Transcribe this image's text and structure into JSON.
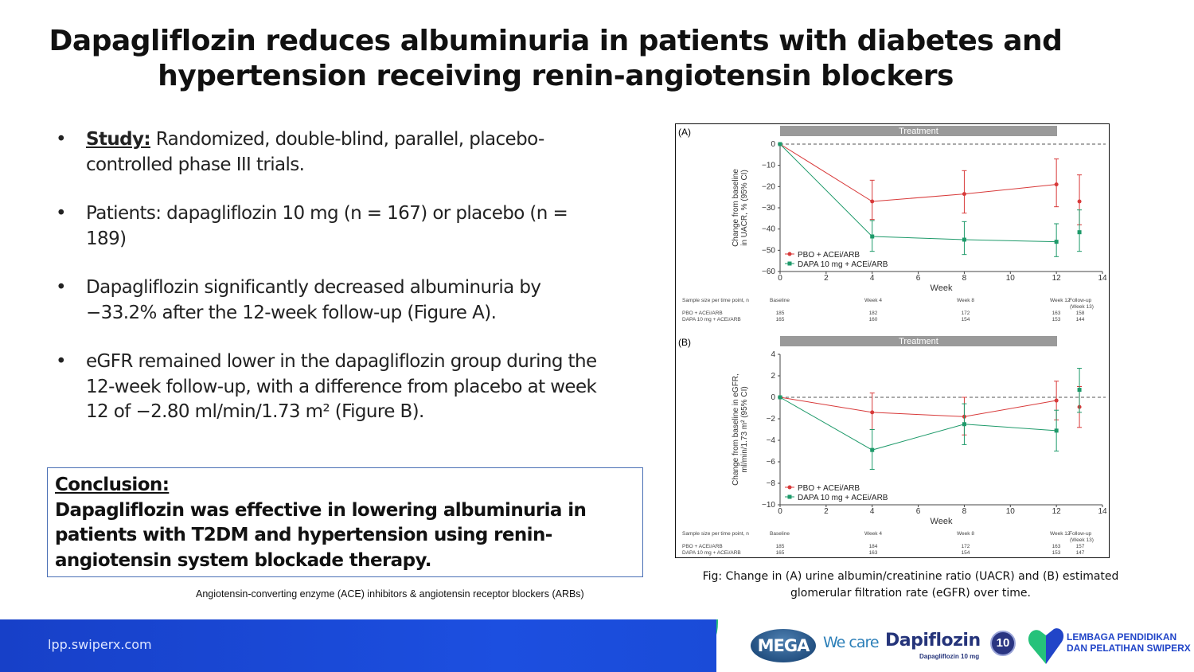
{
  "title": {
    "line1": "Dapagliflozin reduces albuminuria in patients with diabetes and",
    "line2": "hypertension receiving renin-angiotensin blockers"
  },
  "bullets": [
    {
      "marker": "•",
      "label": "Study:",
      "text": " Randomized, double-blind, parallel, placebo-controlled phase III trials."
    },
    {
      "marker": "•",
      "text": "Patients: dapagliflozin 10 mg (n = 167) or placebo (n = 189)"
    },
    {
      "marker": "•",
      "text": "Dapagliflozin significantly decreased albuminuria by −33.2% after the 12-week follow-up (Figure A)."
    },
    {
      "marker": "•",
      "text": "eGFR remained lower in the dapagliflozin group during the 12-week follow-up, with a difference from placebo at week 12 of −2.80 ml/min/1.73 m² (Figure B)."
    }
  ],
  "conclusion": {
    "heading": "Conclusion:",
    "text": "Dapagliflozin was effective in lowering albuminuria in patients with T2DM and hypertension using renin-angiotensin system blockade therapy."
  },
  "abbreviation_note": "Angiotensin-converting enzyme (ACE) inhibitors & angiotensin receptor blockers (ARBs)",
  "caption": "Fig: Change in (A) urine albumin/creatinine ratio (UACR) and (B) estimated glomerular filtration rate (eGFR) over time.",
  "footer": {
    "url": "lpp.swiperx.com",
    "mega": "MEGA",
    "we_care": "We care",
    "brand": "Dapiflozin",
    "brand_sub": "Dapagliflozin 10 mg",
    "badge": "10",
    "org_line1": "LEMBAGA PENDIDIKAN",
    "org_line2": "DAN PELATIHAN SWIPERX"
  },
  "colors": {
    "pbo": "#d83a3a",
    "dapa": "#1e9a6a",
    "treatment_bar": "#9a9a9a"
  },
  "chart_data": [
    {
      "type": "line",
      "panel": "(A)",
      "band_label": "Treatment",
      "xlabel": "Week",
      "ylabel": [
        "Change from baseline",
        "in UACR, % (95% CI)"
      ],
      "xlim": [
        0,
        14
      ],
      "xticks": [
        0,
        2,
        4,
        6,
        8,
        10,
        12,
        14
      ],
      "ylim": [
        -60,
        0
      ],
      "yticks": [
        0,
        -10,
        -20,
        -30,
        -40,
        -50,
        -60
      ],
      "reference_line": 0,
      "legend": "bottom-left",
      "series": [
        {
          "name": "PBO + ACEi/ARB",
          "marker": "circle",
          "x": [
            0,
            4,
            8,
            12,
            13
          ],
          "y": [
            0,
            -27,
            -23.5,
            -19,
            -27
          ],
          "ci": [
            [
              0,
              0
            ],
            [
              -35.5,
              -17
            ],
            [
              -32.5,
              -12.5
            ],
            [
              -29.5,
              -7
            ],
            [
              -38,
              -14.5
            ]
          ]
        },
        {
          "name": "DAPA 10 mg + ACEi/ARB",
          "marker": "square",
          "x": [
            0,
            4,
            8,
            12,
            13
          ],
          "y": [
            0,
            -43.5,
            -45,
            -46,
            -41.5
          ],
          "ci": [
            [
              0,
              0
            ],
            [
              -50.5,
              -36
            ],
            [
              -52,
              -36.5
            ],
            [
              -53,
              -37.5
            ],
            [
              -50.5,
              -31
            ]
          ]
        }
      ],
      "sample_size": {
        "label": "Sample size per time point, n",
        "columns": [
          "Baseline",
          "Week 4",
          "Week 8",
          "Week 12",
          "Follow-up (Week 13)"
        ],
        "rows": [
          {
            "name": "PBO + ACEi/ARB",
            "values": [
              "185",
              "182",
              "172",
              "163",
              "158"
            ]
          },
          {
            "name": "DAPA 10 mg + ACEi/ARB",
            "values": [
              "165",
              "160",
              "154",
              "153",
              "144"
            ]
          }
        ]
      }
    },
    {
      "type": "line",
      "panel": "(B)",
      "band_label": "Treatment",
      "xlabel": "Week",
      "ylabel": [
        "Change from baseline in eGFR,",
        "ml/min/1.73 m² (95% CI)"
      ],
      "xlim": [
        0,
        14
      ],
      "xticks": [
        0,
        2,
        4,
        6,
        8,
        10,
        12,
        14
      ],
      "ylim": [
        -10,
        4
      ],
      "yticks": [
        4,
        2,
        0,
        -2,
        -4,
        -6,
        -8,
        -10
      ],
      "reference_line": 0,
      "legend": "bottom-left",
      "series": [
        {
          "name": "PBO + ACEi/ARB",
          "marker": "circle",
          "x": [
            0,
            4,
            8,
            12,
            13
          ],
          "y": [
            0,
            -1.4,
            -1.8,
            -0.3,
            -0.9
          ],
          "ci": [
            [
              0,
              0
            ],
            [
              -3,
              0.4
            ],
            [
              -3.5,
              0
            ],
            [
              -2.1,
              1.5
            ],
            [
              -2.8,
              1.0
            ]
          ]
        },
        {
          "name": "DAPA 10 mg + ACEi/ARB",
          "marker": "square",
          "x": [
            0,
            4,
            8,
            12,
            13
          ],
          "y": [
            0,
            -4.9,
            -2.5,
            -3.1,
            0.7
          ],
          "ci": [
            [
              0,
              0
            ],
            [
              -6.7,
              -3
            ],
            [
              -4.4,
              -0.6
            ],
            [
              -5,
              -1.2
            ],
            [
              -1.4,
              2.7
            ]
          ]
        }
      ],
      "sample_size": {
        "label": "Sample size per time point, n",
        "columns": [
          "Baseline",
          "Week 4",
          "Week 8",
          "Week 12",
          "Follow-up (Week 13)"
        ],
        "rows": [
          {
            "name": "PBO + ACEi/ARB",
            "values": [
              "185",
              "184",
              "172",
              "163",
              "157"
            ]
          },
          {
            "name": "DAPA 10 mg + ACEi/ARB",
            "values": [
              "165",
              "163",
              "154",
              "153",
              "147"
            ]
          }
        ]
      }
    }
  ]
}
